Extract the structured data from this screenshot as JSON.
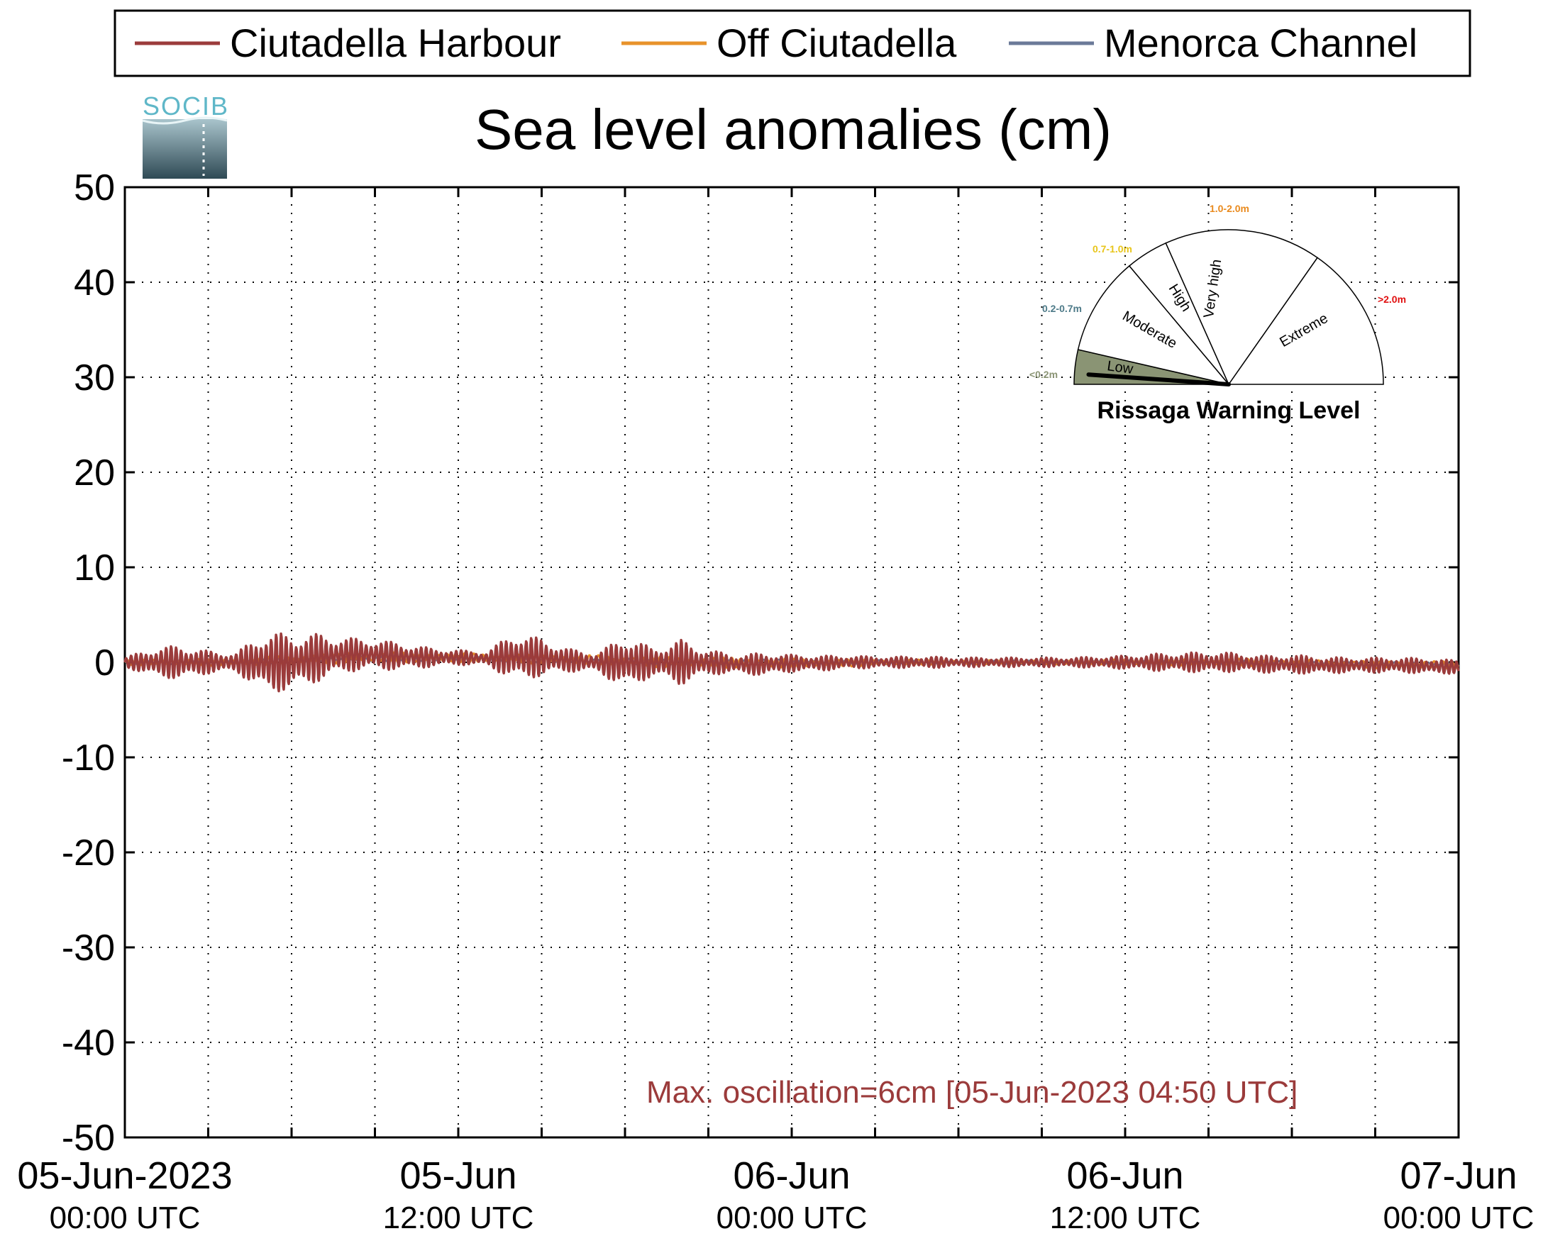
{
  "chart_data": {
    "type": "line",
    "title": "Sea level anomalies (cm)",
    "xlabel": "",
    "ylabel": "",
    "ylim": [
      -50,
      50
    ],
    "yticks": [
      50,
      40,
      30,
      20,
      10,
      0,
      -10,
      -20,
      -30,
      -40,
      -50
    ],
    "xlim": [
      "2023-06-05T00:00",
      "2023-06-07T00:00"
    ],
    "xticks": [
      {
        "date": "05-Jun-2023",
        "time": "00:00 UTC"
      },
      {
        "date": "05-Jun",
        "time": "12:00 UTC"
      },
      {
        "date": "06-Jun",
        "time": "00:00 UTC"
      },
      {
        "date": "06-Jun",
        "time": "12:00 UTC"
      },
      {
        "date": "07-Jun",
        "time": "00:00 UTC"
      }
    ],
    "grid": true,
    "legend_position": "top",
    "series": [
      {
        "name": "Ciutadella Harbour",
        "color": "#9b3b3b",
        "x_hours": [
          0,
          1,
          2,
          3,
          4,
          5,
          6,
          7,
          8,
          9,
          10,
          11,
          12,
          13,
          14,
          15,
          16,
          17,
          18,
          19,
          20,
          21,
          22,
          23,
          24,
          25,
          26,
          27,
          28,
          29,
          30,
          31,
          32,
          33,
          34,
          35,
          36,
          37,
          38,
          39,
          40,
          41,
          42,
          43,
          44,
          45,
          46,
          47,
          48
        ],
        "amplitude_cm": [
          0.5,
          1.5,
          1.8,
          1.2,
          1.0,
          3.2,
          3.0,
          2.5,
          1.8,
          1.6,
          1.4,
          1.0,
          0.8,
          0.7,
          2.5,
          2.0,
          1.2,
          1.0,
          2.8,
          1.5,
          2.4,
          1.3,
          1.0,
          1.2,
          0.9,
          0.8,
          0.7,
          0.6,
          0.6,
          0.6,
          0.5,
          0.5,
          0.5,
          0.5,
          0.5,
          0.6,
          0.7,
          0.9,
          1.0,
          1.1,
          1.0,
          0.9,
          1.0,
          0.9,
          0.8,
          0.8,
          0.8,
          0.8,
          0.7
        ],
        "mean_cm": [
          0,
          0,
          0,
          0,
          0,
          0,
          0,
          0.5,
          0.8,
          0.8,
          0.6,
          0.5,
          0.5,
          0.4,
          0.6,
          0.5,
          0.2,
          0,
          0,
          0,
          0,
          0,
          -0.2,
          -0.2,
          -0.1,
          -0.1,
          0,
          0,
          0,
          0,
          0,
          0,
          0,
          0,
          0,
          0,
          0,
          0,
          0,
          0,
          0,
          -0.2,
          -0.2,
          -0.3,
          -0.3,
          -0.3,
          -0.3,
          -0.4,
          -0.5
        ]
      },
      {
        "name": "Off Ciutadella",
        "color": "#e8922a",
        "x_hours": [
          0,
          4,
          8,
          12,
          16,
          20,
          24,
          28,
          32,
          36,
          40,
          44,
          48
        ],
        "amplitude_cm": [
          0.3,
          0.4,
          0.6,
          0.5,
          0.5,
          0.6,
          0.5,
          0.3,
          0.2,
          0.3,
          0.4,
          0.4,
          0.4
        ],
        "mean_cm": [
          0,
          0,
          0.5,
          0.5,
          0.3,
          0,
          -0.1,
          0,
          0,
          0,
          0,
          -0.2,
          -0.3
        ]
      },
      {
        "name": "Menorca Channel",
        "color": "#6b7a98",
        "x_hours": [
          0,
          4,
          8,
          12,
          16,
          20,
          24,
          28,
          32,
          36,
          40,
          44,
          48
        ],
        "amplitude_cm": [
          0.2,
          0.2,
          0.3,
          0.3,
          0.3,
          0.3,
          0.3,
          0.2,
          0.2,
          0.2,
          0.2,
          0.2,
          0.2
        ],
        "mean_cm": [
          0,
          0,
          0.4,
          0.4,
          0.2,
          0,
          0,
          0,
          0,
          0,
          0,
          -0.1,
          -0.2
        ]
      }
    ],
    "annotation": "Max. oscillation=6cm [05-Jun-2023 04:50 UTC]",
    "annotation_color": "#9b3b3b"
  },
  "logo": {
    "text": "SOCIB"
  },
  "gauge": {
    "title": "Rissaga Warning Level",
    "current_level": "Low",
    "levels": [
      {
        "label": "Low",
        "range": "<0.2m",
        "color": "#8a9474"
      },
      {
        "label": "Moderate",
        "range": "0.2-0.7m",
        "color": "#4d7a88"
      },
      {
        "label": "High",
        "range": "0.7-1.0m",
        "color": "#e8c51a"
      },
      {
        "label": "Very high",
        "range": "1.0-2.0m",
        "color": "#e98a1e"
      },
      {
        "label": "Extreme",
        "range": ">2.0m",
        "color": "#e01010"
      }
    ]
  }
}
